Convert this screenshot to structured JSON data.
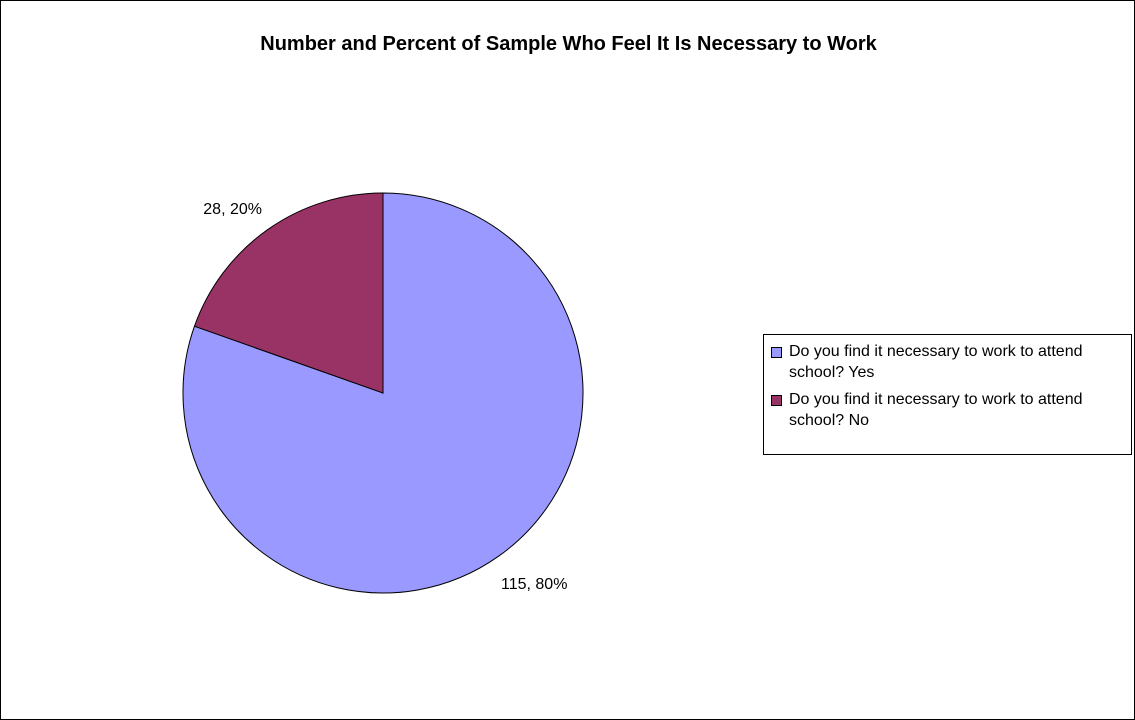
{
  "chart_data": {
    "type": "pie",
    "title": "Number and Percent of Sample Who Feel It Is Necessary to Work",
    "slices": [
      {
        "label": "Do you find it necessary to work to attend school? Yes",
        "value": 115,
        "percent": 80,
        "data_label": "115, 80%",
        "color": "#9999FF"
      },
      {
        "label": "Do you find it necessary to work to attend school? No",
        "value": 28,
        "percent": 20,
        "data_label": "28, 20%",
        "color": "#993366"
      }
    ],
    "legend_position": "right"
  }
}
